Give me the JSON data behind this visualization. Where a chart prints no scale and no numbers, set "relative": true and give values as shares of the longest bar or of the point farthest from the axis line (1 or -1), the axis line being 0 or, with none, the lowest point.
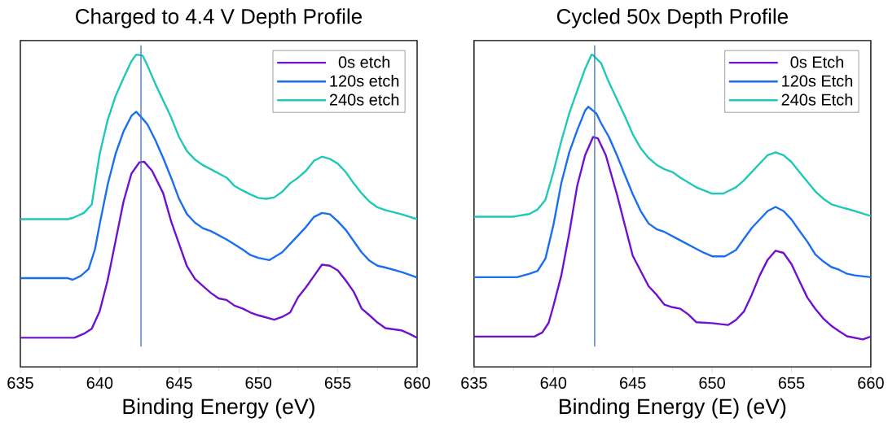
{
  "chart_data": [
    {
      "type": "line",
      "title": "Charged to 4.4 V Depth Profile",
      "xlabel": "Binding Energy (eV)",
      "relative": true,
      "xlim": [
        635,
        660
      ],
      "xticks": [
        635,
        640,
        645,
        650,
        655,
        660
      ],
      "legend": "top right",
      "grid": false,
      "ref_lines": [
        {
          "axis": "x",
          "value": 642.6,
          "color": "#4472c4"
        }
      ],
      "series": [
        {
          "name": "0s etch",
          "color": "#7010d0",
          "x": [
            635,
            638.4,
            639,
            639.5,
            640,
            640.5,
            641,
            641.5,
            642,
            642.5,
            642.8,
            643.3,
            644,
            644.5,
            645,
            645.5,
            646,
            646.5,
            647,
            647.5,
            648,
            648.5,
            649,
            649.5,
            650,
            651,
            651.5,
            652,
            652.5,
            653,
            653.5,
            654,
            654.5,
            655,
            655.5,
            656,
            656.5,
            657,
            657.5,
            658,
            659,
            659.5,
            660
          ],
          "values": [
            0.093,
            0.093,
            0.106,
            0.122,
            0.178,
            0.277,
            0.403,
            0.529,
            0.619,
            0.655,
            0.657,
            0.628,
            0.556,
            0.466,
            0.394,
            0.322,
            0.282,
            0.259,
            0.237,
            0.219,
            0.214,
            0.196,
            0.187,
            0.174,
            0.165,
            0.151,
            0.16,
            0.174,
            0.223,
            0.255,
            0.291,
            0.327,
            0.324,
            0.309,
            0.277,
            0.241,
            0.187,
            0.165,
            0.142,
            0.124,
            0.117,
            0.106,
            0.093
          ]
        },
        {
          "name": "120s etch",
          "color": "#1a6ff0",
          "x": [
            635,
            638,
            638.3,
            638.8,
            639.3,
            639.7,
            640,
            640.5,
            641,
            641.5,
            642,
            642.3,
            642.7,
            643,
            643.5,
            644,
            644.5,
            645,
            645.5,
            646,
            646.5,
            647,
            648,
            649,
            649.5,
            650,
            650.7,
            651.5,
            652,
            652.5,
            653,
            653.5,
            654,
            654.5,
            655,
            655.5,
            656,
            656.5,
            657,
            657.5,
            658,
            659,
            660
          ],
          "values": [
            0.284,
            0.284,
            0.279,
            0.291,
            0.313,
            0.376,
            0.457,
            0.583,
            0.682,
            0.754,
            0.804,
            0.817,
            0.795,
            0.777,
            0.727,
            0.669,
            0.606,
            0.538,
            0.489,
            0.462,
            0.444,
            0.435,
            0.408,
            0.376,
            0.358,
            0.349,
            0.342,
            0.367,
            0.394,
            0.421,
            0.448,
            0.48,
            0.493,
            0.489,
            0.466,
            0.439,
            0.403,
            0.367,
            0.34,
            0.324,
            0.318,
            0.304,
            0.286
          ]
        },
        {
          "name": "240s etch",
          "color": "#20c8b8",
          "x": [
            635,
            638,
            638.3,
            639,
            639.5,
            640,
            640.5,
            641,
            641.5,
            642,
            642.3,
            642.7,
            643,
            643.5,
            644,
            644.5,
            645,
            645.5,
            646,
            646.5,
            647,
            648,
            648.5,
            649,
            649.5,
            650,
            650.5,
            651,
            651.5,
            652,
            652.5,
            653,
            653.5,
            654,
            654.5,
            655,
            655.5,
            656,
            656.5,
            657,
            657.5,
            658,
            659,
            660
          ],
          "values": [
            0.473,
            0.473,
            0.477,
            0.493,
            0.52,
            0.682,
            0.79,
            0.867,
            0.925,
            0.979,
            1.0,
            0.997,
            0.966,
            0.907,
            0.853,
            0.799,
            0.736,
            0.691,
            0.664,
            0.646,
            0.633,
            0.606,
            0.579,
            0.565,
            0.552,
            0.541,
            0.538,
            0.543,
            0.561,
            0.588,
            0.606,
            0.628,
            0.66,
            0.673,
            0.666,
            0.651,
            0.624,
            0.588,
            0.556,
            0.529,
            0.511,
            0.502,
            0.489,
            0.473
          ]
        }
      ]
    },
    {
      "type": "line",
      "title": "Cycled 50x Depth Profile",
      "xlabel": "Binding Energy (E) (eV)",
      "relative": true,
      "xlim": [
        635,
        660
      ],
      "xticks": [
        635,
        640,
        645,
        650,
        655,
        660
      ],
      "legend": "top right",
      "grid": false,
      "ref_lines": [
        {
          "axis": "x",
          "value": 642.6,
          "color": "#4472c4"
        }
      ],
      "series": [
        {
          "name": "0s Etch",
          "color": "#7010d0",
          "x": [
            635,
            638.8,
            639.3,
            639.7,
            640,
            640.5,
            641,
            641.5,
            642,
            642.5,
            642.8,
            643.3,
            644,
            644.5,
            645,
            645.5,
            646,
            646.5,
            647,
            647.5,
            648,
            648.5,
            649,
            650,
            651,
            651.5,
            652,
            652.5,
            653,
            653.5,
            654,
            654.5,
            655,
            655.5,
            656,
            656.5,
            657,
            657.5,
            658,
            658.5,
            659.5,
            660
          ],
          "values": [
            0.097,
            0.097,
            0.11,
            0.141,
            0.195,
            0.293,
            0.428,
            0.58,
            0.678,
            0.736,
            0.732,
            0.678,
            0.553,
            0.454,
            0.356,
            0.307,
            0.258,
            0.231,
            0.199,
            0.191,
            0.186,
            0.168,
            0.143,
            0.14,
            0.134,
            0.15,
            0.177,
            0.231,
            0.293,
            0.343,
            0.372,
            0.365,
            0.329,
            0.275,
            0.222,
            0.186,
            0.155,
            0.132,
            0.114,
            0.098,
            0.088,
            0.097
          ]
        },
        {
          "name": "120s Etch",
          "color": "#1a6ff0",
          "x": [
            635,
            637.7,
            638.5,
            639,
            639.5,
            640,
            640.5,
            641,
            641.5,
            642,
            642.2,
            642.7,
            643,
            643.5,
            644,
            644.5,
            645,
            645.5,
            646,
            646.5,
            647,
            648,
            649,
            649.5,
            650,
            650.8,
            651.5,
            652,
            652.5,
            653,
            653.5,
            654,
            654.5,
            655,
            655.5,
            656,
            656.5,
            657,
            657.5,
            658,
            658.5,
            659,
            660
          ],
          "values": [
            0.287,
            0.287,
            0.298,
            0.307,
            0.347,
            0.454,
            0.589,
            0.687,
            0.758,
            0.821,
            0.833,
            0.812,
            0.781,
            0.736,
            0.678,
            0.615,
            0.553,
            0.499,
            0.459,
            0.441,
            0.432,
            0.405,
            0.378,
            0.365,
            0.354,
            0.354,
            0.374,
            0.41,
            0.445,
            0.472,
            0.499,
            0.512,
            0.499,
            0.472,
            0.436,
            0.401,
            0.36,
            0.338,
            0.32,
            0.311,
            0.298,
            0.293,
            0.287
          ]
        },
        {
          "name": "240s Etch",
          "color": "#20c8b8",
          "x": [
            635,
            637.5,
            638.5,
            639,
            639.5,
            640,
            640.5,
            641,
            641.5,
            642,
            642.4,
            642.5,
            643,
            643.5,
            644,
            644.5,
            645,
            645.5,
            646,
            646.5,
            647,
            647.5,
            648,
            649,
            650,
            650.7,
            651.5,
            652,
            652.5,
            653,
            653.5,
            654,
            654.5,
            655,
            655.5,
            656,
            656.5,
            657,
            657.5,
            658,
            659,
            660
          ],
          "values": [
            0.481,
            0.481,
            0.49,
            0.504,
            0.535,
            0.624,
            0.723,
            0.812,
            0.884,
            0.955,
            1.0,
            0.998,
            0.973,
            0.911,
            0.857,
            0.803,
            0.745,
            0.7,
            0.669,
            0.647,
            0.633,
            0.624,
            0.606,
            0.575,
            0.555,
            0.555,
            0.575,
            0.597,
            0.624,
            0.651,
            0.678,
            0.687,
            0.678,
            0.656,
            0.624,
            0.593,
            0.562,
            0.539,
            0.521,
            0.513,
            0.499,
            0.483
          ]
        }
      ]
    }
  ]
}
